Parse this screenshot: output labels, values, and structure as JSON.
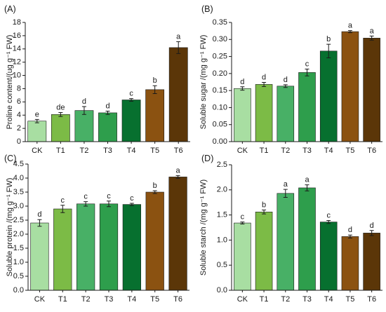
{
  "figure": {
    "categories": [
      "CK",
      "T1",
      "T2",
      "T3",
      "T4",
      "T5",
      "T6"
    ],
    "bar_colors": [
      "#a8dea2",
      "#7cbb46",
      "#48b066",
      "#2e9e4c",
      "#07702f",
      "#8b5211",
      "#5b3608"
    ]
  },
  "chart_data": [
    {
      "type": "bar",
      "panel": "(A)",
      "categories": [
        "CK",
        "T1",
        "T2",
        "T3",
        "T4",
        "T5",
        "T6"
      ],
      "values": [
        3.1,
        4.1,
        4.7,
        4.35,
        6.3,
        7.85,
        14.2
      ],
      "errors": [
        0.25,
        0.3,
        0.6,
        0.25,
        0.2,
        0.6,
        0.9
      ],
      "letters": [
        "e",
        "de",
        "d",
        "d",
        "c",
        "b",
        "a"
      ],
      "ylabel": "Proline content/(ug g⁻¹ FW)",
      "ylim": [
        0,
        18
      ],
      "yticks": [
        0,
        2,
        4,
        6,
        8,
        10,
        12,
        14,
        16,
        18
      ],
      "ytick_labels": [
        "0",
        "2",
        "4",
        "6",
        "8",
        "10",
        "12",
        "14",
        "16",
        "18"
      ]
    },
    {
      "type": "bar",
      "panel": "(B)",
      "categories": [
        "CK",
        "T1",
        "T2",
        "T3",
        "T4",
        "T5",
        "T6"
      ],
      "values": [
        0.156,
        0.168,
        0.163,
        0.203,
        0.266,
        0.323,
        0.304
      ],
      "errors": [
        0.005,
        0.006,
        0.004,
        0.01,
        0.02,
        0.003,
        0.006
      ],
      "letters": [
        "d",
        "d",
        "d",
        "c",
        "b",
        "a",
        "a"
      ],
      "ylabel": "Soluble sugar /(mg g⁻¹ FW)",
      "ylim": [
        0,
        0.35
      ],
      "yticks": [
        0,
        0.05,
        0.1,
        0.15,
        0.2,
        0.25,
        0.3,
        0.35
      ],
      "ytick_labels": [
        "0.00",
        "0.05",
        "0.10",
        "0.15",
        "0.20",
        "0.25",
        "0.30",
        "0.35"
      ]
    },
    {
      "type": "bar",
      "panel": "(C)",
      "categories": [
        "CK",
        "T1",
        "T2",
        "T3",
        "T4",
        "T5",
        "T6"
      ],
      "values": [
        2.4,
        2.9,
        3.08,
        3.08,
        3.06,
        3.5,
        4.04
      ],
      "errors": [
        0.12,
        0.13,
        0.08,
        0.1,
        0.04,
        0.05,
        0.05
      ],
      "letters": [
        "d",
        "c",
        "c",
        "c",
        "c",
        "b",
        "a"
      ],
      "ylabel": "Soluble protein /(mg g⁻¹ FW)",
      "ylim": [
        0,
        4.5
      ],
      "yticks": [
        0,
        0.5,
        1,
        1.5,
        2,
        2.5,
        3,
        3.5,
        4,
        4.5
      ],
      "ytick_labels": [
        "0.0",
        "0.5",
        "1.0",
        "1.5",
        "2.0",
        "2.5",
        "3.0",
        "3.5",
        "4.0",
        "4.5"
      ]
    },
    {
      "type": "bar",
      "panel": "(D)",
      "categories": [
        "CK",
        "T1",
        "T2",
        "T3",
        "T4",
        "T5",
        "T6"
      ],
      "values": [
        1.34,
        1.56,
        1.93,
        2.04,
        1.36,
        1.07,
        1.14
      ],
      "errors": [
        0.02,
        0.04,
        0.08,
        0.06,
        0.03,
        0.03,
        0.05
      ],
      "letters": [
        "c",
        "b",
        "a",
        "a",
        "c",
        "d",
        "d"
      ],
      "ylabel": "Soluble starch /(mg g⁻¹ FW)",
      "ylim": [
        0,
        2.5
      ],
      "yticks": [
        0,
        0.5,
        1,
        1.5,
        2,
        2.5
      ],
      "ytick_labels": [
        "0.0",
        "0.5",
        "1.0",
        "1.5",
        "2.0",
        "2.5"
      ]
    }
  ]
}
